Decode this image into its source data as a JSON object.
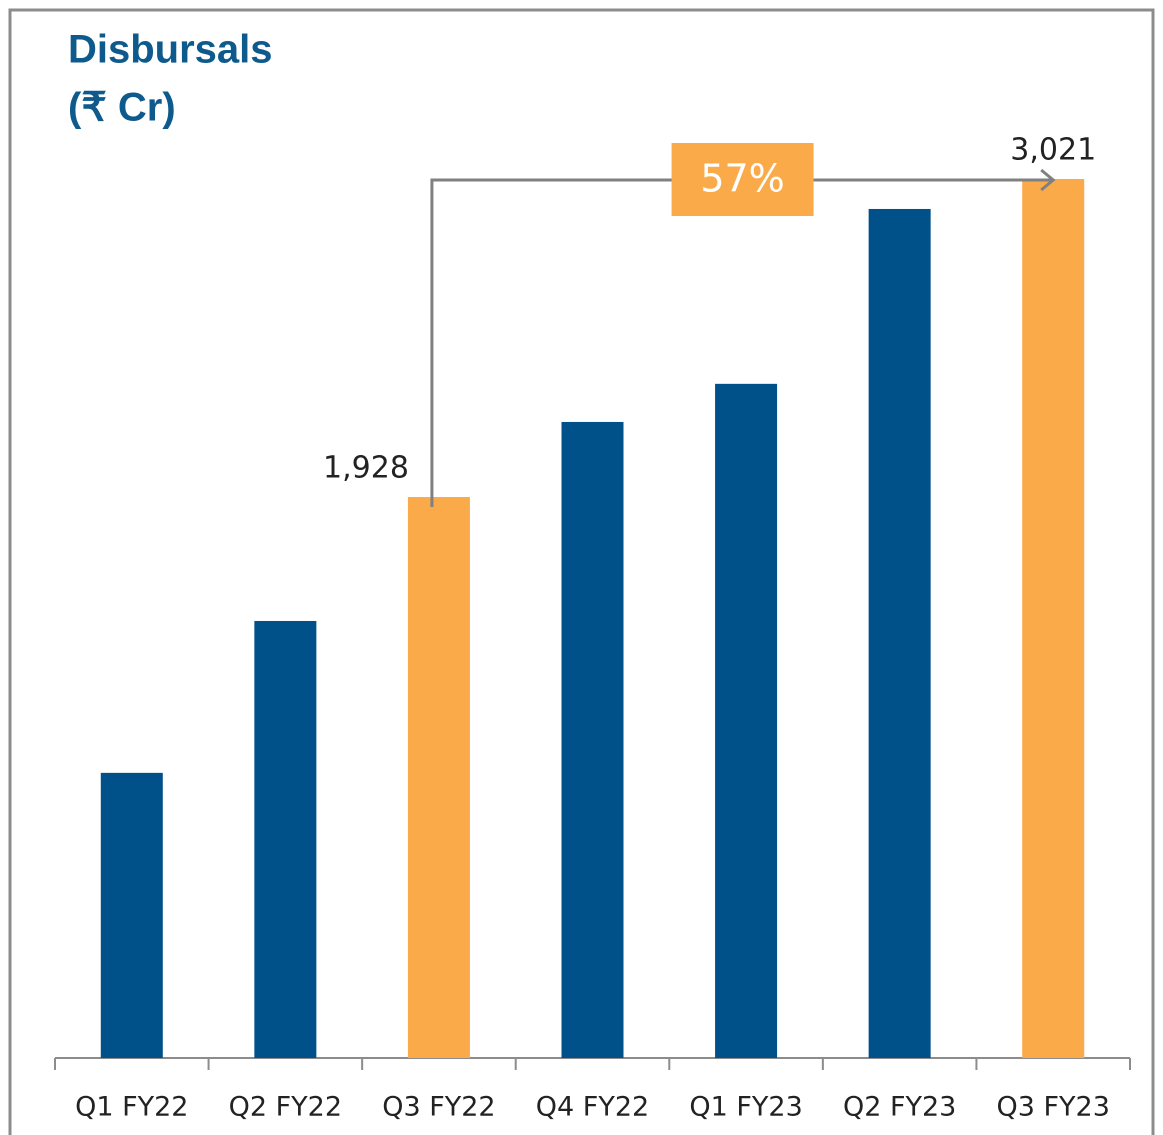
{
  "chart_data": {
    "type": "bar",
    "title": "Disbursals",
    "subtitle": "(₹ Cr)",
    "categories": [
      "Q1 FY22",
      "Q2 FY22",
      "Q3 FY22",
      "Q4 FY22",
      "Q1 FY23",
      "Q2 FY23",
      "Q3 FY23"
    ],
    "values": [
      980,
      1502,
      1928,
      2186,
      2317,
      2918,
      3021
    ],
    "value_labels": [
      null,
      null,
      "1,928",
      null,
      null,
      null,
      "3,021"
    ],
    "colors": [
      "#00508a",
      "#00508a",
      "#fbaa4a",
      "#00508a",
      "#00508a",
      "#00508a",
      "#fbaa4a"
    ],
    "annotation": "57%"
  }
}
